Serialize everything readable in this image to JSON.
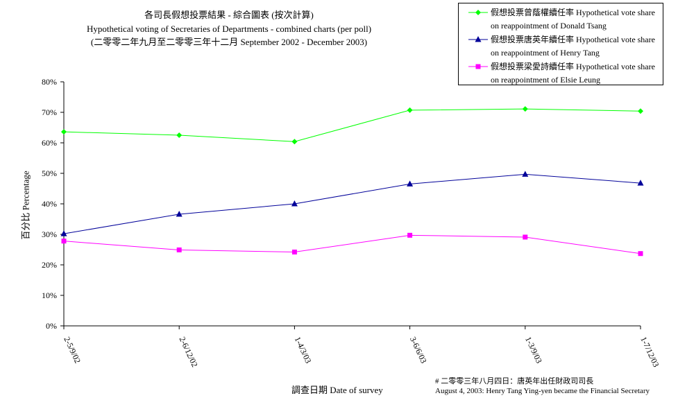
{
  "title": {
    "line1": "各司長假想投票結果 - 綜合圖表 (按次計算)",
    "line2": "Hypothetical voting of Secretaries of Departments - combined charts (per poll)",
    "line3": "(二零零二年九月至二零零三年十二月 September 2002 - December 2003)"
  },
  "footnote": {
    "line1": "# 二零零三年八月四日：唐英年出任財政司司長",
    "line2": "August 4, 2003: Henry Tang Ying-yen became the Financial Secretary"
  },
  "chart_data": {
    "type": "line",
    "categories": [
      "2-5/9/02",
      "2-6/12/02",
      "1-4/3/03",
      "3-6/6/03",
      "1-3/9/03",
      "1-7/12/03"
    ],
    "series": [
      {
        "name": "假想投票曾蔭權續任率 Hypothetical vote share on reappointment of Donald Tsang",
        "values": [
          63.6,
          62.5,
          60.4,
          70.7,
          71.1,
          70.4
        ],
        "color": "#00ff00",
        "marker": "diamond"
      },
      {
        "name": "假想投票唐英年續任率 Hypothetical vote share on reappointment of Henry Tang",
        "values": [
          30.2,
          36.6,
          40.0,
          46.5,
          49.7,
          46.8
        ],
        "color": "#000099",
        "marker": "triangle"
      },
      {
        "name": "假想投票梁愛詩續任率 Hypothetical vote share on reappointment of Elsie Leung",
        "values": [
          27.8,
          24.9,
          24.2,
          29.7,
          29.1,
          23.7
        ],
        "color": "#ff00ff",
        "marker": "square"
      }
    ],
    "xlabel": "調查日期 Date of survey",
    "ylabel": "百分比 Percentage",
    "ylim": [
      0,
      80
    ],
    "yticks": [
      "0%",
      "10%",
      "20%",
      "30%",
      "40%",
      "50%",
      "60%",
      "70%",
      "80%"
    ],
    "grid": false,
    "legend_position": "top-right"
  }
}
